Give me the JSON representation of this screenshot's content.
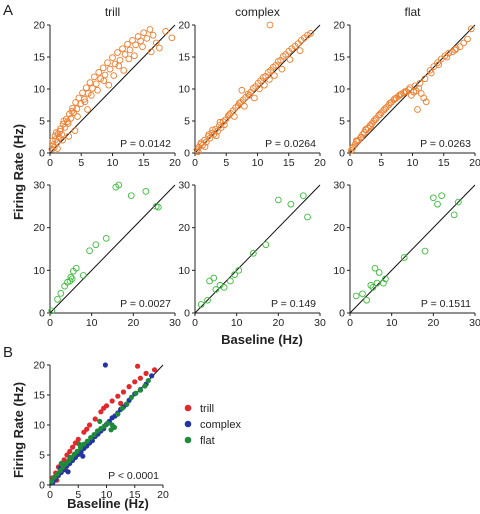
{
  "panel_letters": [
    "A",
    "B"
  ],
  "ylabel_A": "Firing Rate (Hz)",
  "xlabel_A": "Baseline (Hz)",
  "ylabel_B": "Firing Rate (Hz)",
  "xlabel_B": "Baseline (Hz)",
  "colors": {
    "orange": "#ef7d2d",
    "green": "#3dbb3d",
    "red": "#e2272d",
    "blue": "#2434a3",
    "darkgreen": "#1e8a3a"
  },
  "chart_data": [
    {
      "type": "scatter",
      "title": "trill",
      "marker": "open-circle",
      "color": "#ef7d2d",
      "xlim": [
        0,
        20
      ],
      "ylim": [
        0,
        20
      ],
      "xticks": [
        0,
        5,
        10,
        15,
        20
      ],
      "yticks": [
        0,
        5,
        10,
        15,
        20
      ],
      "annotation": "P = 0.0142",
      "identity_line": true,
      "x": [
        0.3,
        0.5,
        0.7,
        0.9,
        1.1,
        1.3,
        1.5,
        1.7,
        1.9,
        2.1,
        2.4,
        2.6,
        2.9,
        3.1,
        3.3,
        3.6,
        3.8,
        4.1,
        4.3,
        4.6,
        4.9,
        5.2,
        5.5,
        5.8,
        6.1,
        6.4,
        6.8,
        7.1,
        7.4,
        7.8,
        8.1,
        8.5,
        8.8,
        9.2,
        9.6,
        10.0,
        10.4,
        10.8,
        11.2,
        11.6,
        12.0,
        12.4,
        12.8,
        13.2,
        13.7,
        14.1,
        14.5,
        15.0,
        15.5,
        16.0,
        16.5,
        17.0,
        17.5,
        18.5,
        19.5,
        0.4,
        0.8,
        1.2,
        1.6,
        2.0,
        2.8,
        3.5,
        4.4,
        5.6,
        6.6,
        7.6,
        8.6,
        9.4,
        10.2,
        11.0,
        11.8,
        12.6,
        13.5,
        14.8,
        16.2,
        3.0,
        4.0,
        2.2,
        1.0,
        6.0
      ],
      "y": [
        0.6,
        1.3,
        0.9,
        2.1,
        1.6,
        3.0,
        2.4,
        3.8,
        2.9,
        4.5,
        4.0,
        5.3,
        4.6,
        6.1,
        5.4,
        7.0,
        6.3,
        7.9,
        6.9,
        8.6,
        7.7,
        9.4,
        8.4,
        10.2,
        9.3,
        11.0,
        10.1,
        11.9,
        10.8,
        12.6,
        11.6,
        13.3,
        12.2,
        14.1,
        13.1,
        14.9,
        13.9,
        15.7,
        14.5,
        16.3,
        15.4,
        17.0,
        16.1,
        17.6,
        16.9,
        18.2,
        17.5,
        18.8,
        17.9,
        19.3,
        18.4,
        17.2,
        16.4,
        19.0,
        18.0,
        1.9,
        2.7,
        0.7,
        3.4,
        2.0,
        4.9,
        6.5,
        5.7,
        8.0,
        9.0,
        9.8,
        11.3,
        10.6,
        12.1,
        13.6,
        12.9,
        14.7,
        15.2,
        16.6,
        15.8,
        2.6,
        3.5,
        5.0,
        3.2,
        6.8
      ]
    },
    {
      "type": "scatter",
      "title": "complex",
      "marker": "open-circle",
      "color": "#ef7d2d",
      "xlim": [
        0,
        20
      ],
      "ylim": [
        0,
        20
      ],
      "xticks": [
        0,
        5,
        10,
        15,
        20
      ],
      "yticks": [
        0,
        5,
        10,
        15,
        20
      ],
      "annotation": "P = 0.0264",
      "identity_line": true,
      "x": [
        0.3,
        0.6,
        0.9,
        1.2,
        1.5,
        1.8,
        2.1,
        2.4,
        2.7,
        3.0,
        3.3,
        3.6,
        3.9,
        4.2,
        4.5,
        4.9,
        5.3,
        5.7,
        6.1,
        6.5,
        6.9,
        7.3,
        7.7,
        8.1,
        8.5,
        8.9,
        9.3,
        9.7,
        10.1,
        10.5,
        10.9,
        11.3,
        11.7,
        12.1,
        12.5,
        12.9,
        13.3,
        13.7,
        14.1,
        14.5,
        15.0,
        15.5,
        16.0,
        16.5,
        17.0,
        17.5,
        18.0,
        18.5,
        0.5,
        1.0,
        1.6,
        2.2,
        2.8,
        3.4,
        4.0,
        4.7,
        5.5,
        6.3,
        7.1,
        7.9,
        8.7,
        9.5,
        10.3,
        11.1,
        11.9,
        12.7,
        13.9,
        15.2,
        16.8,
        12.0,
        7.5
      ],
      "y": [
        0.5,
        0.9,
        1.4,
        1.2,
        2.0,
        1.7,
        2.6,
        2.3,
        3.1,
        2.9,
        3.7,
        3.4,
        4.3,
        4.0,
        4.9,
        5.2,
        5.8,
        6.2,
        6.6,
        7.1,
        7.4,
        7.9,
        8.3,
        8.7,
        9.2,
        9.5,
        10.1,
        10.4,
        10.9,
        11.3,
        11.8,
        12.0,
        12.6,
        12.9,
        13.4,
        13.7,
        14.3,
        14.5,
        15.1,
        15.4,
        15.9,
        16.3,
        16.7,
        17.1,
        17.6,
        18.0,
        18.4,
        18.7,
        0.2,
        1.6,
        1.0,
        2.9,
        3.6,
        2.7,
        4.8,
        4.4,
        6.0,
        5.7,
        7.8,
        7.3,
        9.0,
        8.6,
        10.0,
        10.6,
        11.5,
        12.1,
        13.1,
        14.6,
        16.0,
        20.0,
        9.8
      ]
    },
    {
      "type": "scatter",
      "title": "flat",
      "marker": "open-circle",
      "color": "#ef7d2d",
      "xlim": [
        0,
        20
      ],
      "ylim": [
        0,
        20
      ],
      "xticks": [
        0,
        5,
        10,
        15,
        20
      ],
      "yticks": [
        0,
        5,
        10,
        15,
        20
      ],
      "annotation": "P = 0.0263",
      "identity_line": true,
      "x": [
        0.2,
        0.5,
        0.8,
        1.1,
        1.4,
        1.7,
        2.0,
        2.3,
        2.6,
        2.9,
        3.2,
        3.5,
        3.8,
        4.2,
        4.6,
        5.0,
        5.4,
        5.8,
        6.2,
        6.6,
        7.0,
        7.4,
        7.8,
        8.2,
        8.6,
        9.0,
        9.4,
        9.8,
        10.2,
        10.6,
        11.0,
        11.4,
        11.8,
        12.2,
        12.8,
        13.4,
        14.0,
        14.6,
        15.2,
        15.8,
        16.4,
        17.0,
        17.6,
        18.2,
        18.8,
        19.4,
        0.4,
        1.0,
        1.8,
        2.5,
        3.3,
        4.0,
        4.8,
        5.6,
        6.4,
        7.2,
        8.0,
        8.8,
        9.6,
        10.4,
        11.2,
        12.0,
        13.0,
        14.2,
        15.5,
        16.8,
        10.8
      ],
      "y": [
        0.4,
        0.9,
        1.3,
        1.8,
        2.0,
        2.4,
        2.9,
        3.2,
        3.6,
        3.9,
        4.3,
        4.6,
        5.0,
        5.4,
        5.9,
        6.3,
        6.7,
        7.1,
        7.5,
        7.9,
        8.3,
        8.6,
        8.9,
        9.2,
        9.4,
        9.6,
        9.9,
        9.0,
        9.5,
        9.7,
        10.1,
        9.3,
        8.6,
        8.0,
        12.9,
        13.5,
        14.1,
        14.7,
        15.2,
        15.6,
        15.8,
        16.3,
        16.6,
        17.2,
        17.8,
        19.4,
        0.8,
        1.9,
        2.5,
        3.7,
        4.1,
        5.2,
        6.0,
        6.9,
        7.8,
        8.5,
        9.1,
        9.6,
        10.2,
        10.5,
        10.9,
        11.6,
        12.5,
        13.8,
        15.0,
        16.1,
        6.8
      ]
    },
    {
      "type": "scatter",
      "title": "",
      "marker": "open-circle",
      "color": "#3dbb3d",
      "xlim": [
        0,
        30
      ],
      "ylim": [
        0,
        30
      ],
      "xticks": [
        0,
        10,
        20,
        30
      ],
      "yticks": [
        0,
        10,
        20,
        30
      ],
      "annotation": "P = 0.0027",
      "identity_line": true,
      "x": [
        0.4,
        1.8,
        2.6,
        3.5,
        4.2,
        4.8,
        5.3,
        5.6,
        6.3,
        8.0,
        9.5,
        11.0,
        13.5,
        15.8,
        16.5,
        19.5,
        23.0,
        25.5,
        26.0,
        5.0
      ],
      "y": [
        0.5,
        3.2,
        4.6,
        6.3,
        7.2,
        7.5,
        8.0,
        9.8,
        10.5,
        8.8,
        14.6,
        16.0,
        17.5,
        29.5,
        30.0,
        27.5,
        28.5,
        25.0,
        24.8,
        8.4
      ]
    },
    {
      "type": "scatter",
      "title": "",
      "marker": "open-circle",
      "color": "#3dbb3d",
      "xlim": [
        0,
        30
      ],
      "ylim": [
        0,
        30
      ],
      "xticks": [
        0,
        10,
        20,
        30
      ],
      "yticks": [
        0,
        10,
        20,
        30
      ],
      "annotation": "P = 0.149",
      "identity_line": true,
      "x": [
        1.5,
        3.0,
        3.5,
        4.5,
        5.0,
        6.0,
        7.0,
        8.5,
        9.5,
        10.5,
        14.0,
        17.0,
        20.0,
        23.0,
        26.0,
        27.0
      ],
      "y": [
        2.0,
        3.0,
        7.5,
        8.2,
        5.5,
        6.5,
        6.0,
        7.5,
        9.0,
        10.0,
        14.0,
        16.0,
        26.5,
        25.5,
        27.5,
        22.5
      ]
    },
    {
      "type": "scatter",
      "title": "",
      "marker": "open-circle",
      "color": "#3dbb3d",
      "xlim": [
        0,
        30
      ],
      "ylim": [
        0,
        30
      ],
      "xticks": [
        0,
        10,
        20,
        30
      ],
      "yticks": [
        0,
        10,
        20,
        30
      ],
      "annotation": "P = 0.1511",
      "identity_line": true,
      "x": [
        1.5,
        3.0,
        4.0,
        5.0,
        5.5,
        6.0,
        6.5,
        7.0,
        8.0,
        8.5,
        13.0,
        18.0,
        20.0,
        21.0,
        22.0,
        25.0,
        26.0
      ],
      "y": [
        4.0,
        4.5,
        3.0,
        6.5,
        6.0,
        10.5,
        7.0,
        9.5,
        7.0,
        8.0,
        13.0,
        14.5,
        27.0,
        25.5,
        27.5,
        23.0,
        26.0
      ]
    },
    {
      "type": "scatter",
      "title": "",
      "marker": "filled-circle",
      "xlim": [
        0,
        20
      ],
      "ylim": [
        0,
        20
      ],
      "xticks": [
        0,
        5,
        10,
        15,
        20
      ],
      "yticks": [
        0,
        5,
        10,
        15,
        20
      ],
      "annotation": "P < 0.0001",
      "identity_line": true,
      "legend_position": "right",
      "series": [
        {
          "name": "trill",
          "color": "#e2272d",
          "x": [
            0.5,
            1.0,
            1.5,
            2.0,
            2.5,
            3.0,
            3.5,
            4.0,
            4.5,
            5.0,
            6.0,
            7.0,
            8.0,
            9.0,
            10.0,
            11.0,
            12.0,
            13.0,
            14.0,
            15.0,
            16.0,
            17.0,
            18.5,
            1.2,
            2.8,
            4.2,
            6.5,
            9.5,
            12.5,
            15.5
          ],
          "y": [
            1.2,
            2.0,
            3.0,
            3.5,
            4.2,
            5.0,
            5.6,
            6.3,
            7.0,
            7.6,
            8.8,
            10.0,
            11.0,
            12.2,
            13.2,
            14.0,
            14.8,
            15.5,
            16.4,
            17.2,
            17.8,
            18.6,
            19.2,
            0.8,
            2.5,
            4.8,
            9.3,
            12.8,
            13.6,
            19.8
          ]
        },
        {
          "name": "complex",
          "color": "#2434a3",
          "x": [
            0.5,
            1.0,
            1.5,
            2.0,
            2.5,
            3.0,
            3.5,
            4.0,
            4.5,
            5.0,
            5.5,
            6.0,
            6.5,
            7.0,
            7.5,
            8.0,
            8.5,
            9.0,
            9.5,
            10.0,
            10.5,
            11.0,
            11.5,
            12.0,
            12.5,
            13.0,
            13.5,
            14.0,
            15.0,
            16.0,
            17.0,
            18.0,
            9.8,
            1.8,
            3.2,
            5.8
          ],
          "y": [
            0.4,
            1.0,
            1.6,
            2.1,
            2.6,
            3.2,
            3.6,
            4.1,
            4.6,
            5.1,
            5.5,
            6.1,
            6.5,
            7.0,
            7.4,
            8.1,
            8.5,
            9.0,
            9.4,
            10.1,
            10.6,
            11.2,
            11.5,
            12.0,
            12.6,
            13.0,
            13.4,
            14.1,
            15.2,
            15.9,
            16.8,
            18.2,
            20.0,
            2.8,
            2.2,
            4.8
          ]
        },
        {
          "name": "flat",
          "color": "#1e8a3a",
          "x": [
            0.3,
            0.8,
            1.3,
            1.8,
            2.3,
            2.8,
            3.3,
            3.8,
            4.3,
            4.8,
            5.4,
            6.0,
            6.6,
            7.2,
            7.8,
            8.4,
            9.0,
            9.6,
            10.2,
            10.8,
            11.4,
            12.0,
            12.8,
            13.6,
            14.4,
            15.2,
            16.0,
            16.8,
            17.4,
            2.0,
            3.5,
            5.2,
            8.8,
            11.0
          ],
          "y": [
            0.6,
            1.3,
            1.8,
            2.4,
            3.0,
            3.5,
            4.0,
            4.5,
            5.1,
            5.6,
            6.2,
            6.8,
            7.3,
            7.9,
            8.4,
            9.0,
            9.4,
            9.8,
            10.3,
            9.2,
            9.6,
            11.8,
            12.8,
            13.5,
            14.6,
            15.3,
            15.8,
            16.5,
            17.4,
            3.6,
            4.6,
            6.8,
            10.6,
            10.0
          ]
        }
      ]
    }
  ]
}
